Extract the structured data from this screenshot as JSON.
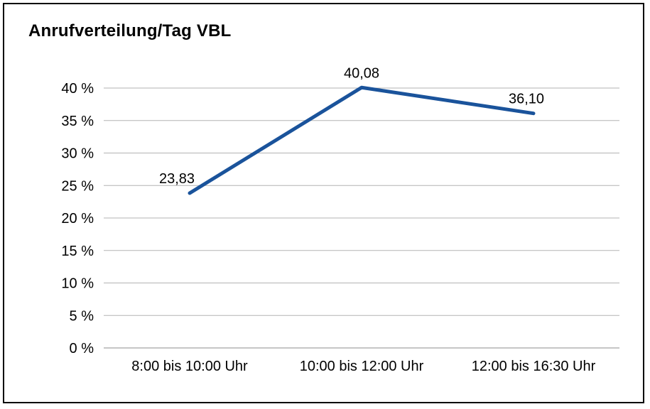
{
  "chart_data": {
    "type": "line",
    "title": "Anrufverteilung/Tag VBL",
    "categories": [
      "8:00 bis 10:00 Uhr",
      "10:00 bis 12:00 Uhr",
      "12:00 bis 16:30 Uhr"
    ],
    "values": [
      23.83,
      40.08,
      36.1
    ],
    "data_labels": [
      "23,83",
      "40,08",
      "36,10"
    ],
    "y_ticks": [
      "0 %",
      "5 %",
      "10 %",
      "15 %",
      "20 %",
      "25 %",
      "30 %",
      "35 %",
      "40 %"
    ],
    "ylim": [
      0,
      40
    ],
    "y_step": 5,
    "xlabel": "",
    "ylabel": "",
    "grid": "horizontal",
    "legend": "none",
    "line_color": "#1A539B",
    "grid_color": "#b3b3b3",
    "axis_color": "#8c8c8c",
    "text_color": "#000000"
  }
}
